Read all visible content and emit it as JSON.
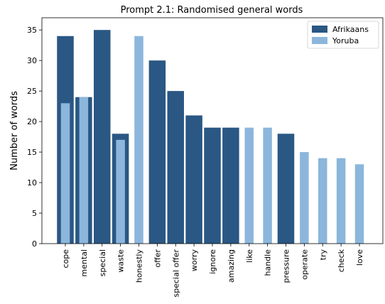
{
  "chart_data": {
    "type": "bar",
    "title": "Prompt 2.1: Randomised general words",
    "xlabel": "",
    "ylabel": "Number of words",
    "ylim": [
      0,
      37
    ],
    "yticks": [
      0,
      5,
      10,
      15,
      20,
      25,
      30,
      35
    ],
    "grid": false,
    "legend_position": "top-right",
    "categories": [
      "cope",
      "mental",
      "special",
      "waste",
      "honestly",
      "offer",
      "special offer",
      "worry",
      "ignore",
      "amazing",
      "like",
      "handle",
      "pressure",
      "operate",
      "try",
      "check",
      "love"
    ],
    "series": [
      {
        "name": "Afrikaans",
        "color": "#2a5783",
        "values": [
          34,
          24,
          35,
          18,
          null,
          30,
          25,
          21,
          19,
          19,
          null,
          null,
          18,
          null,
          null,
          null,
          null
        ]
      },
      {
        "name": "Yoruba",
        "color": "#8cb6dc",
        "values": [
          23,
          24,
          null,
          17,
          34,
          null,
          null,
          null,
          null,
          null,
          19,
          19,
          null,
          15,
          14,
          14,
          13
        ]
      }
    ]
  }
}
